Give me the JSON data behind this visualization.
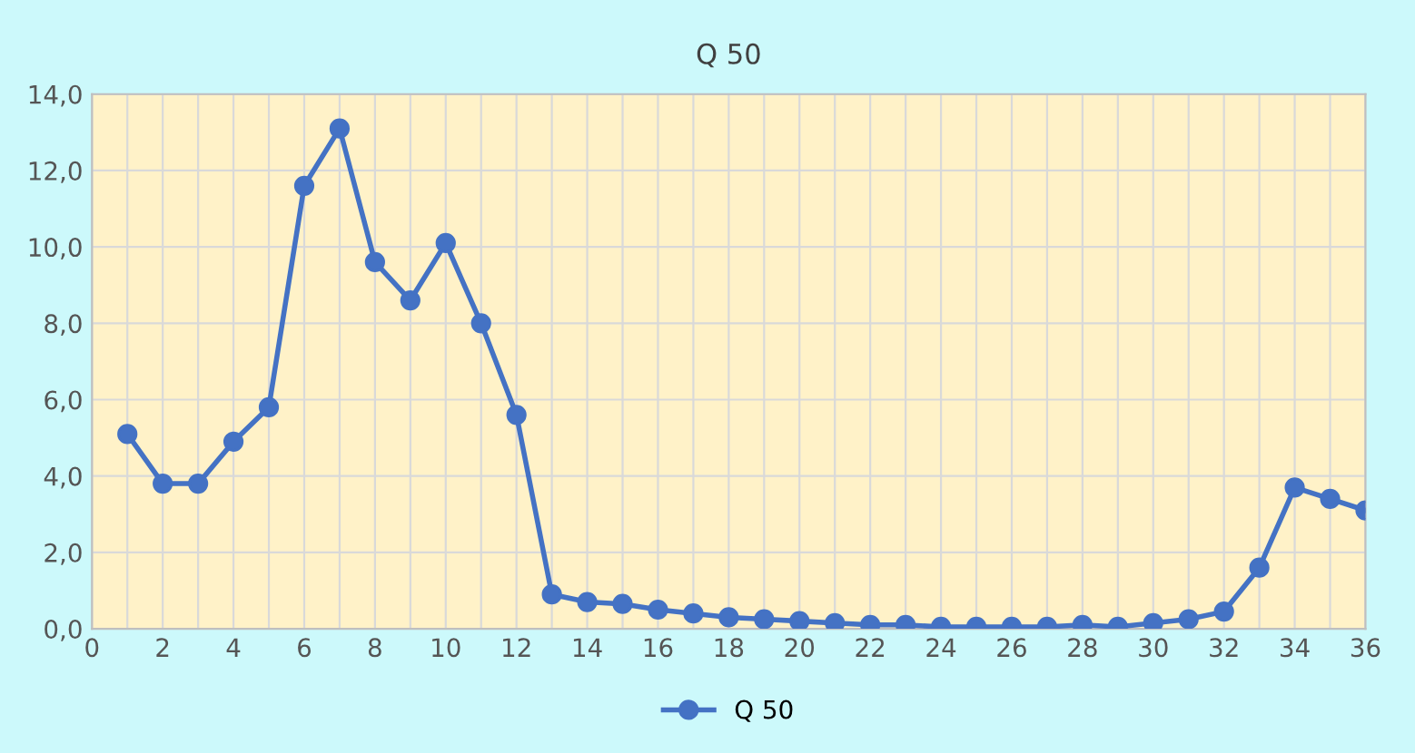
{
  "chart_data": {
    "type": "line",
    "title": "Q 50",
    "x": [
      1,
      2,
      3,
      4,
      5,
      6,
      7,
      8,
      9,
      10,
      11,
      12,
      13,
      14,
      15,
      16,
      17,
      18,
      19,
      20,
      21,
      22,
      23,
      24,
      25,
      26,
      27,
      28,
      29,
      30,
      31,
      32,
      33,
      34,
      35,
      36
    ],
    "series": [
      {
        "name": "Q 50",
        "color": "#4472c4",
        "values": [
          5.1,
          3.8,
          3.8,
          4.9,
          5.8,
          11.6,
          13.1,
          9.6,
          8.6,
          10.1,
          8.0,
          5.6,
          0.9,
          0.7,
          0.65,
          0.5,
          0.4,
          0.3,
          0.25,
          0.2,
          0.15,
          0.1,
          0.1,
          0.05,
          0.05,
          0.05,
          0.05,
          0.1,
          0.05,
          0.15,
          0.25,
          0.45,
          1.6,
          3.7,
          3.4,
          3.1
        ]
      }
    ],
    "xlim": [
      0,
      36
    ],
    "xticks": [
      0,
      {
        "value": 1,
        "label": null
      },
      2,
      {
        "value": 3,
        "label": null
      },
      4,
      {
        "value": 5,
        "label": null
      },
      6,
      {
        "value": 7,
        "label": null
      },
      8,
      {
        "value": 9,
        "label": null
      },
      10,
      {
        "value": 11,
        "label": null
      },
      12,
      {
        "value": 13,
        "label": null
      },
      14,
      {
        "value": 15,
        "label": null
      },
      16,
      {
        "value": 17,
        "label": null
      },
      18,
      {
        "value": 19,
        "label": null
      },
      20,
      {
        "value": 21,
        "label": null
      },
      22,
      {
        "value": 23,
        "label": null
      },
      24,
      {
        "value": 25,
        "label": null
      },
      26,
      {
        "value": 27,
        "label": null
      },
      28,
      {
        "value": 29,
        "label": null
      },
      30,
      {
        "value": 31,
        "label": null
      },
      32,
      {
        "value": 33,
        "label": null
      },
      34,
      {
        "value": 35,
        "label": null
      },
      36
    ],
    "ylim": [
      0,
      14
    ],
    "yticks": [
      {
        "value": 0,
        "label": "0,0"
      },
      {
        "value": 2,
        "label": "2,0"
      },
      {
        "value": 4,
        "label": "4,0"
      },
      {
        "value": 6,
        "label": "6,0"
      },
      {
        "value": 8,
        "label": "8,0"
      },
      {
        "value": 10,
        "label": "10,0"
      },
      {
        "value": 12,
        "label": "12,0"
      },
      {
        "value": 14,
        "label": "14,0"
      }
    ],
    "grid": true,
    "legend": "bottom",
    "marker": "circle",
    "line_style": "solid"
  }
}
